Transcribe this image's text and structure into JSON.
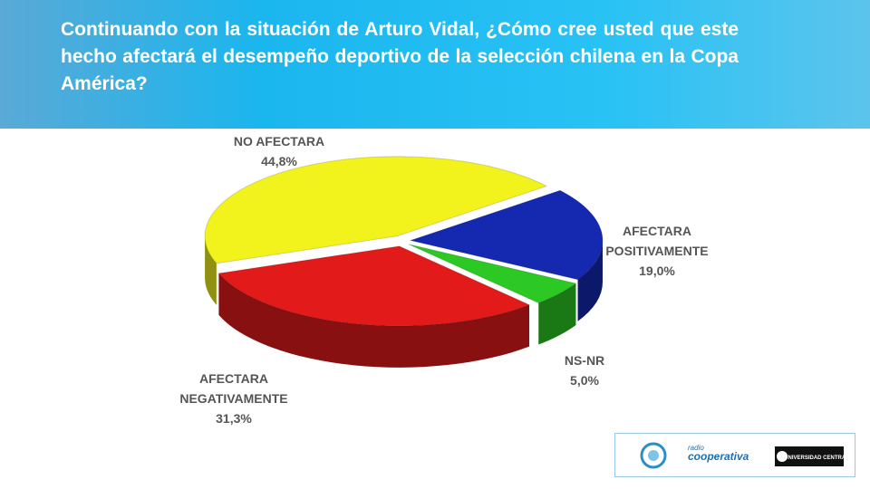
{
  "title": "Continuando con la situación de Arturo Vidal, ¿Cómo cree usted que este hecho afectará el desempeño deportivo de la selección chilena en la Copa América?",
  "chart_data": {
    "type": "pie",
    "categories": [
      "NO AFECTARA",
      "AFECTARA POSITIVAMENTE",
      "NS-NR",
      "AFECTARA NEGATIVAMENTE"
    ],
    "values": [
      44.8,
      19.0,
      5.0,
      31.3
    ],
    "value_labels": [
      "44,8%",
      "19,0%",
      "5,0%",
      "31,3%"
    ],
    "colors": [
      "#f2f21c",
      "#1428b0",
      "#2cc823",
      "#e31a1a"
    ]
  },
  "logos": [
    "radio",
    "cooperativa",
    "UNIVERSIDAD CENTRAL"
  ]
}
